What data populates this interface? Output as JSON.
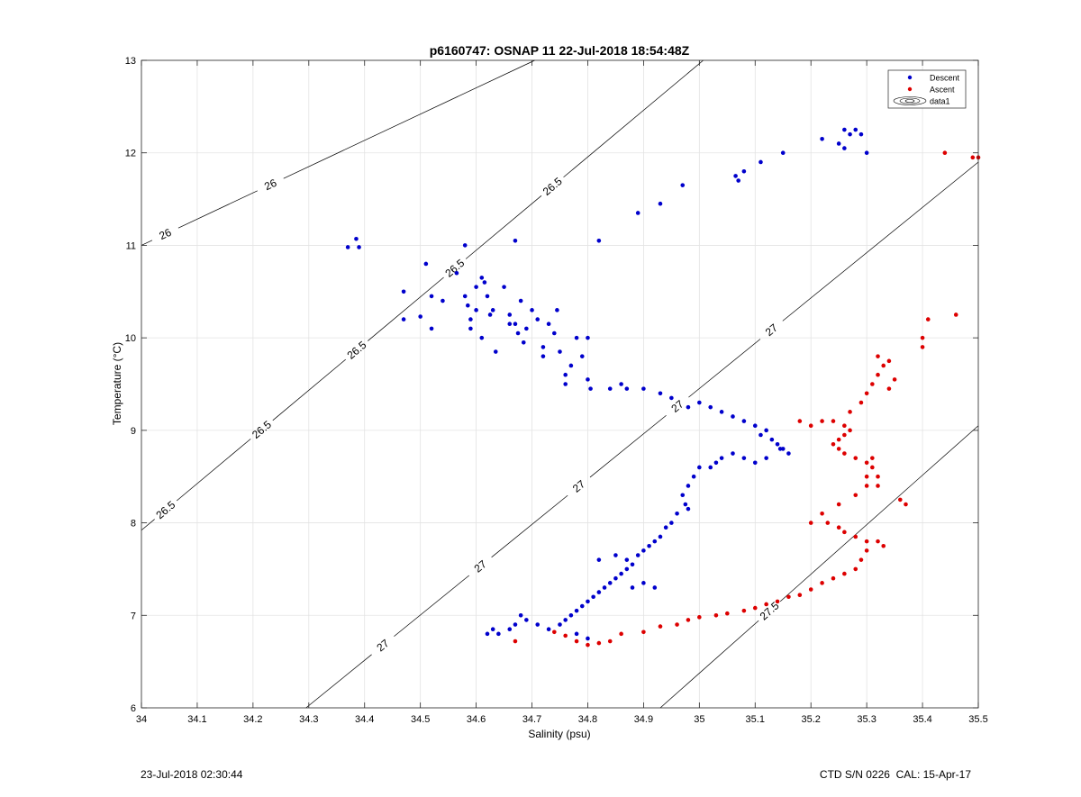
{
  "chart_data": {
    "type": "scatter",
    "title": "p6160747: OSNAP 11 22-Jul-2018 18:54:48Z",
    "xlabel": "Salinity (psu)",
    "ylabel": "Temperature (°C)",
    "xlim": [
      34,
      35.5
    ],
    "ylim": [
      6,
      13
    ],
    "xticks": [
      "34",
      "34.1",
      "34.2",
      "34.3",
      "34.4",
      "34.5",
      "34.6",
      "34.7",
      "34.8",
      "34.9",
      "35",
      "35.1",
      "35.2",
      "35.3",
      "35.4",
      "35.5"
    ],
    "yticks": [
      "6",
      "7",
      "8",
      "9",
      "10",
      "11",
      "12",
      "13"
    ],
    "grid": true,
    "legend_position": "top-right",
    "legend": [
      "Descent",
      "Ascent",
      "data1"
    ],
    "contours": [
      {
        "label": "26",
        "points": [
          [
            34.0,
            11.0
          ],
          [
            34.705,
            13.0
          ]
        ],
        "label_positions": [
          [
            34.035,
            11.22
          ],
          [
            34.185,
            12.25
          ]
        ]
      },
      {
        "label": "26.5",
        "points": [
          [
            34.0,
            7.92
          ],
          [
            35.007,
            13.0
          ]
        ],
        "label_positions": [
          [
            34.035,
            8.2
          ],
          [
            34.175,
            9.3
          ],
          [
            34.305,
            10.45
          ],
          [
            34.465,
            11.45
          ],
          [
            34.61,
            12.55
          ]
        ]
      },
      {
        "label": "27",
        "points": [
          [
            34.295,
            6.0
          ],
          [
            35.5,
            11.9
          ]
        ],
        "label_positions": [
          [
            34.205,
            6.15
          ],
          [
            34.335,
            7.4
          ],
          [
            34.47,
            8.55
          ],
          [
            34.615,
            9.65
          ],
          [
            34.76,
            10.75
          ],
          [
            34.905,
            11.75
          ]
        ]
      },
      {
        "label": "27.5",
        "points": [
          [
            34.93,
            6.0
          ],
          [
            35.5,
            9.05
          ]
        ],
        "label_positions": [
          [
            34.605,
            6.25
          ],
          [
            34.74,
            7.5
          ],
          [
            34.875,
            8.75
          ]
        ]
      }
    ],
    "series": [
      {
        "name": "Descent",
        "color": "#0000cc",
        "points": [
          [
            34.37,
            10.98
          ],
          [
            34.385,
            11.07
          ],
          [
            34.39,
            10.98
          ],
          [
            34.47,
            10.5
          ],
          [
            34.47,
            10.2
          ],
          [
            34.5,
            10.23
          ],
          [
            34.51,
            10.8
          ],
          [
            34.52,
            10.45
          ],
          [
            34.52,
            10.1
          ],
          [
            34.54,
            10.4
          ],
          [
            34.565,
            10.7
          ],
          [
            34.58,
            11.0
          ],
          [
            34.58,
            10.45
          ],
          [
            34.585,
            10.35
          ],
          [
            34.59,
            10.2
          ],
          [
            34.59,
            10.1
          ],
          [
            34.6,
            10.55
          ],
          [
            34.6,
            10.3
          ],
          [
            34.61,
            10.65
          ],
          [
            34.61,
            10.0
          ],
          [
            34.615,
            10.6
          ],
          [
            34.62,
            10.45
          ],
          [
            34.625,
            10.25
          ],
          [
            34.63,
            10.3
          ],
          [
            34.635,
            9.85
          ],
          [
            34.65,
            10.55
          ],
          [
            34.66,
            10.25
          ],
          [
            34.66,
            10.15
          ],
          [
            34.67,
            11.05
          ],
          [
            34.67,
            10.15
          ],
          [
            34.675,
            10.05
          ],
          [
            34.68,
            10.4
          ],
          [
            34.685,
            9.95
          ],
          [
            34.69,
            10.1
          ],
          [
            34.7,
            10.3
          ],
          [
            34.71,
            10.2
          ],
          [
            34.72,
            9.9
          ],
          [
            34.72,
            9.8
          ],
          [
            34.73,
            10.15
          ],
          [
            34.74,
            10.05
          ],
          [
            34.745,
            10.3
          ],
          [
            34.75,
            9.85
          ],
          [
            34.76,
            9.6
          ],
          [
            34.76,
            9.5
          ],
          [
            34.77,
            9.7
          ],
          [
            34.78,
            10.0
          ],
          [
            34.79,
            9.8
          ],
          [
            34.8,
            10.0
          ],
          [
            34.8,
            9.55
          ],
          [
            34.805,
            9.45
          ],
          [
            34.82,
            11.05
          ],
          [
            34.84,
            9.45
          ],
          [
            34.86,
            9.5
          ],
          [
            34.87,
            9.45
          ],
          [
            34.89,
            11.35
          ],
          [
            34.9,
            9.45
          ],
          [
            34.93,
            11.45
          ],
          [
            34.93,
            9.4
          ],
          [
            34.95,
            9.35
          ],
          [
            34.97,
            11.65
          ],
          [
            34.98,
            9.25
          ],
          [
            35.0,
            9.3
          ],
          [
            35.02,
            9.25
          ],
          [
            35.04,
            9.2
          ],
          [
            35.06,
            9.15
          ],
          [
            35.065,
            11.75
          ],
          [
            35.07,
            11.7
          ],
          [
            35.08,
            11.8
          ],
          [
            35.08,
            9.1
          ],
          [
            35.1,
            9.05
          ],
          [
            35.11,
            11.9
          ],
          [
            35.11,
            8.95
          ],
          [
            35.12,
            9.0
          ],
          [
            35.13,
            8.9
          ],
          [
            35.14,
            8.85
          ],
          [
            35.145,
            8.8
          ],
          [
            35.15,
            12.0
          ],
          [
            35.15,
            8.8
          ],
          [
            35.16,
            8.75
          ],
          [
            35.12,
            8.7
          ],
          [
            35.1,
            8.65
          ],
          [
            35.08,
            8.7
          ],
          [
            35.06,
            8.75
          ],
          [
            35.04,
            8.7
          ],
          [
            35.03,
            8.65
          ],
          [
            35.02,
            8.6
          ],
          [
            35.0,
            8.6
          ],
          [
            34.99,
            8.5
          ],
          [
            34.98,
            8.4
          ],
          [
            34.97,
            8.3
          ],
          [
            34.975,
            8.2
          ],
          [
            34.98,
            8.15
          ],
          [
            34.96,
            8.1
          ],
          [
            34.95,
            8.0
          ],
          [
            34.94,
            7.95
          ],
          [
            34.93,
            7.85
          ],
          [
            34.92,
            7.8
          ],
          [
            34.91,
            7.75
          ],
          [
            34.9,
            7.7
          ],
          [
            34.89,
            7.65
          ],
          [
            34.88,
            7.55
          ],
          [
            34.87,
            7.5
          ],
          [
            34.86,
            7.45
          ],
          [
            34.85,
            7.4
          ],
          [
            34.84,
            7.35
          ],
          [
            34.83,
            7.3
          ],
          [
            34.82,
            7.25
          ],
          [
            34.81,
            7.2
          ],
          [
            34.8,
            7.15
          ],
          [
            34.79,
            7.1
          ],
          [
            34.78,
            7.05
          ],
          [
            34.77,
            7.0
          ],
          [
            34.76,
            6.95
          ],
          [
            34.75,
            6.9
          ],
          [
            34.73,
            6.85
          ],
          [
            34.71,
            6.9
          ],
          [
            34.69,
            6.95
          ],
          [
            34.68,
            7.0
          ],
          [
            34.67,
            6.9
          ],
          [
            34.66,
            6.85
          ],
          [
            34.62,
            6.8
          ],
          [
            34.63,
            6.85
          ],
          [
            34.64,
            6.8
          ],
          [
            34.8,
            6.75
          ],
          [
            34.78,
            6.8
          ],
          [
            34.82,
            7.6
          ],
          [
            34.85,
            7.65
          ],
          [
            34.87,
            7.6
          ],
          [
            34.88,
            7.3
          ],
          [
            34.9,
            7.35
          ],
          [
            34.92,
            7.3
          ],
          [
            35.22,
            12.15
          ],
          [
            35.25,
            12.1
          ],
          [
            35.26,
            12.25
          ],
          [
            35.27,
            12.2
          ],
          [
            35.28,
            12.25
          ],
          [
            35.29,
            12.2
          ],
          [
            35.3,
            12.0
          ],
          [
            35.26,
            12.05
          ]
        ]
      },
      {
        "name": "Ascent",
        "color": "#dd0000",
        "points": [
          [
            34.67,
            6.72
          ],
          [
            34.74,
            6.82
          ],
          [
            34.76,
            6.78
          ],
          [
            34.78,
            6.72
          ],
          [
            34.8,
            6.68
          ],
          [
            34.82,
            6.7
          ],
          [
            34.84,
            6.72
          ],
          [
            34.86,
            6.8
          ],
          [
            34.9,
            6.82
          ],
          [
            34.93,
            6.88
          ],
          [
            34.96,
            6.9
          ],
          [
            34.98,
            6.95
          ],
          [
            35.0,
            6.98
          ],
          [
            35.03,
            7.0
          ],
          [
            35.05,
            7.02
          ],
          [
            35.08,
            7.05
          ],
          [
            35.1,
            7.08
          ],
          [
            35.12,
            7.12
          ],
          [
            35.14,
            7.15
          ],
          [
            35.16,
            7.2
          ],
          [
            35.18,
            7.22
          ],
          [
            35.2,
            7.28
          ],
          [
            35.22,
            7.35
          ],
          [
            35.24,
            7.4
          ],
          [
            35.26,
            7.45
          ],
          [
            35.28,
            7.5
          ],
          [
            35.29,
            7.6
          ],
          [
            35.3,
            7.7
          ],
          [
            35.3,
            7.8
          ],
          [
            35.28,
            7.85
          ],
          [
            35.26,
            7.9
          ],
          [
            35.25,
            7.95
          ],
          [
            35.23,
            8.0
          ],
          [
            35.2,
            8.0
          ],
          [
            35.22,
            8.1
          ],
          [
            35.25,
            8.2
          ],
          [
            35.28,
            8.3
          ],
          [
            35.3,
            8.4
          ],
          [
            35.32,
            8.5
          ],
          [
            35.31,
            8.6
          ],
          [
            35.3,
            8.65
          ],
          [
            35.28,
            8.7
          ],
          [
            35.26,
            8.75
          ],
          [
            35.25,
            8.8
          ],
          [
            35.24,
            8.85
          ],
          [
            35.25,
            8.9
          ],
          [
            35.26,
            8.95
          ],
          [
            35.27,
            9.0
          ],
          [
            35.26,
            9.05
          ],
          [
            35.24,
            9.1
          ],
          [
            35.22,
            9.1
          ],
          [
            35.2,
            9.05
          ],
          [
            35.18,
            9.1
          ],
          [
            35.27,
            9.2
          ],
          [
            35.29,
            9.3
          ],
          [
            35.3,
            9.4
          ],
          [
            35.31,
            9.5
          ],
          [
            35.32,
            9.6
          ],
          [
            35.33,
            9.7
          ],
          [
            35.34,
            9.75
          ],
          [
            35.32,
            9.8
          ],
          [
            35.35,
            9.55
          ],
          [
            35.34,
            9.45
          ],
          [
            35.36,
            8.25
          ],
          [
            35.37,
            8.2
          ],
          [
            35.41,
            10.2
          ],
          [
            35.4,
            10.0
          ],
          [
            35.4,
            9.9
          ],
          [
            35.46,
            10.25
          ],
          [
            35.44,
            12.0
          ],
          [
            35.49,
            11.95
          ],
          [
            35.5,
            11.95
          ],
          [
            35.32,
            7.8
          ],
          [
            35.33,
            7.75
          ],
          [
            35.3,
            8.5
          ],
          [
            35.31,
            8.7
          ],
          [
            35.32,
            8.4
          ]
        ]
      }
    ]
  },
  "footer": {
    "left": "23-Jul-2018 02:30:44",
    "right": "CTD S/N 0226  CAL: 15-Apr-17"
  }
}
